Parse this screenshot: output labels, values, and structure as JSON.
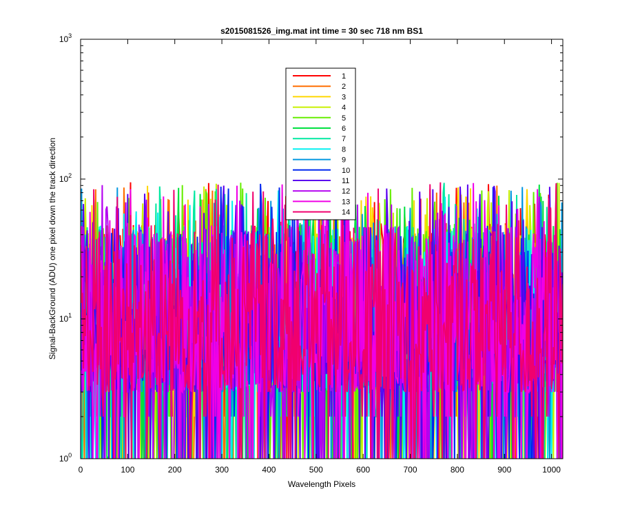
{
  "chart_data": {
    "type": "line",
    "title": "s2015081526_img.mat int time = 30 sec  718 nm BS1",
    "xlabel": "Wavelength Pixels",
    "ylabel": "Signal-BackGround (ADU) one pixel down the track direction",
    "xlim": [
      0,
      1024
    ],
    "ylim": [
      1,
      1000
    ],
    "yscale": "log",
    "x_ticks": [
      "0",
      "100",
      "200",
      "300",
      "400",
      "500",
      "600",
      "700",
      "800",
      "900",
      "1000"
    ],
    "y_ticks": [
      {
        "base": "10",
        "exp": "0"
      },
      {
        "base": "10",
        "exp": "1"
      },
      {
        "base": "10",
        "exp": "2"
      },
      {
        "base": "10",
        "exp": "3"
      }
    ],
    "grid": false,
    "legend_position": "top-center",
    "series": [
      {
        "name": "1",
        "color": "#ff0000"
      },
      {
        "name": "2",
        "color": "#ff6e00"
      },
      {
        "name": "3",
        "color": "#ffd700"
      },
      {
        "name": "4",
        "color": "#c8f000"
      },
      {
        "name": "5",
        "color": "#66ee00"
      },
      {
        "name": "6",
        "color": "#00e040"
      },
      {
        "name": "7",
        "color": "#00e8a0"
      },
      {
        "name": "8",
        "color": "#00f0f0"
      },
      {
        "name": "9",
        "color": "#0096e0"
      },
      {
        "name": "10",
        "color": "#0028f0"
      },
      {
        "name": "11",
        "color": "#5a00f0"
      },
      {
        "name": "12",
        "color": "#b400f0"
      },
      {
        "name": "13",
        "color": "#f000e6"
      },
      {
        "name": "14",
        "color": "#f0006e"
      }
    ],
    "data_note_range": [
      1,
      95
    ]
  }
}
